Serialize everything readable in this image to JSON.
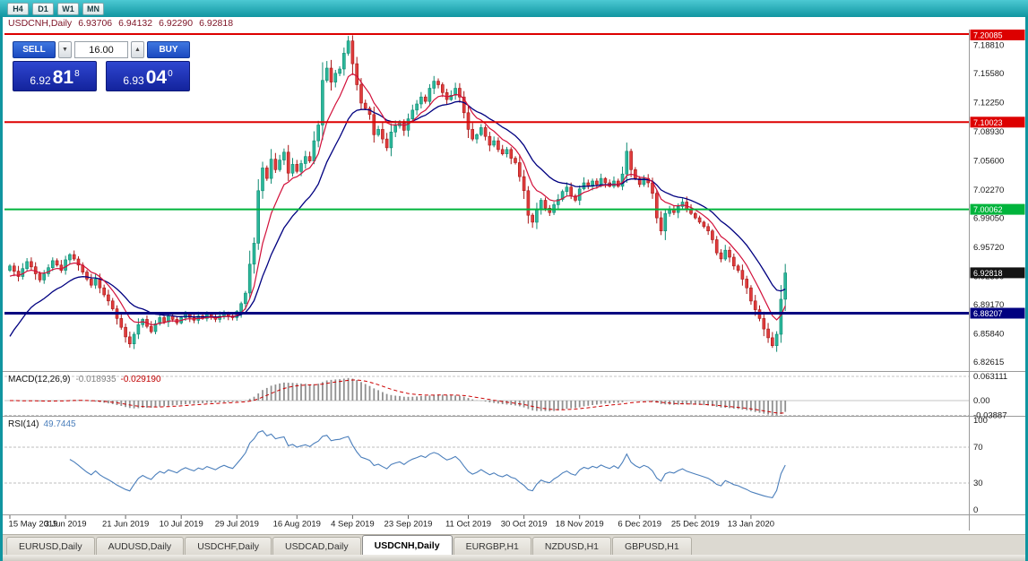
{
  "toolbar": {
    "timeframes": [
      "H4",
      "D1",
      "W1",
      "MN"
    ]
  },
  "title": {
    "symbol": "USDCNH,Daily",
    "open": "6.93706",
    "high": "6.94132",
    "low": "6.92290",
    "close": "6.92818"
  },
  "trade": {
    "sell_label": "SELL",
    "buy_label": "BUY",
    "volume": "16.00",
    "step_down": "▼",
    "step_up": "▲",
    "sell": {
      "big": "6.92",
      "pips": "81",
      "sup": "8"
    },
    "buy": {
      "big": "6.93",
      "pips": "04",
      "sup": "0"
    }
  },
  "chart": {
    "type": "candlestick",
    "symbol": "USDCNH",
    "period": "Daily",
    "hlines": [
      {
        "value": 7.20085,
        "label": "7.20085",
        "color": "#dd0000",
        "width": 2
      },
      {
        "value": 7.10023,
        "label": "7.10023",
        "color": "#dd0000",
        "width": 2
      },
      {
        "value": 7.00062,
        "label": "7.00062",
        "color": "#00b43c",
        "width": 2
      },
      {
        "value": 6.88207,
        "label": "6.88207",
        "color": "#000080",
        "width": 3
      }
    ],
    "current_price": {
      "label": "6.92818",
      "value": 6.92818,
      "box_color": "#141414"
    },
    "y_axis": [
      {
        "label": "7.18810",
        "value": 7.1881
      },
      {
        "label": "7.15580",
        "value": 7.1558
      },
      {
        "label": "7.12250",
        "value": 7.1225
      },
      {
        "label": "7.08930",
        "value": 7.0893
      },
      {
        "label": "7.05600",
        "value": 7.056
      },
      {
        "label": "7.02270",
        "value": 7.0227
      },
      {
        "label": "6.99050",
        "value": 6.9905
      },
      {
        "label": "6.95720",
        "value": 6.9572
      },
      {
        "label": "6.92390",
        "value": 6.9239
      },
      {
        "label": "6.89170",
        "value": 6.8917
      },
      {
        "label": "6.85840",
        "value": 6.8584
      },
      {
        "label": "6.82615",
        "value": 6.82615
      }
    ],
    "date_ticks": [
      {
        "i": 0,
        "label": "15 May 2019"
      },
      {
        "i": 13,
        "label": "3 Jun 2019"
      },
      {
        "i": 27,
        "label": "21 Jun 2019"
      },
      {
        "i": 40,
        "label": "10 Jul 2019"
      },
      {
        "i": 53,
        "label": "29 Jul 2019"
      },
      {
        "i": 67,
        "label": "16 Aug 2019"
      },
      {
        "i": 80,
        "label": "4 Sep 2019"
      },
      {
        "i": 93,
        "label": "23 Sep 2019"
      },
      {
        "i": 107,
        "label": "11 Oct 2019"
      },
      {
        "i": 120,
        "label": "30 Oct 2019"
      },
      {
        "i": 133,
        "label": "18 Nov 2019"
      },
      {
        "i": 147,
        "label": "6 Dec 2019"
      },
      {
        "i": 160,
        "label": "25 Dec 2019"
      },
      {
        "i": 173,
        "label": "13 Jan 2020"
      }
    ],
    "closes": [
      6.936,
      6.93,
      6.924,
      6.933,
      6.941,
      6.935,
      6.927,
      6.92,
      6.927,
      6.934,
      6.942,
      6.937,
      6.931,
      6.943,
      6.949,
      6.944,
      6.937,
      6.929,
      6.921,
      6.914,
      6.921,
      6.911,
      6.903,
      6.896,
      6.887,
      6.876,
      6.866,
      6.855,
      6.847,
      6.858,
      6.869,
      6.875,
      6.867,
      6.861,
      6.87,
      6.877,
      6.872,
      6.879,
      6.875,
      6.871,
      6.877,
      6.881,
      6.877,
      6.874,
      6.879,
      6.876,
      6.881,
      6.878,
      6.875,
      6.879,
      6.882,
      6.879,
      6.877,
      6.884,
      6.893,
      6.905,
      6.938,
      6.962,
      7.022,
      7.048,
      7.036,
      7.058,
      7.046,
      7.057,
      7.066,
      7.042,
      7.052,
      7.044,
      7.053,
      7.061,
      7.056,
      7.079,
      7.097,
      7.148,
      7.162,
      7.146,
      7.156,
      7.161,
      7.179,
      7.193,
      7.167,
      7.143,
      7.122,
      7.116,
      7.109,
      7.086,
      7.092,
      7.081,
      7.071,
      7.089,
      7.096,
      7.101,
      7.091,
      7.104,
      7.114,
      7.121,
      7.129,
      7.124,
      7.139,
      7.147,
      7.143,
      7.134,
      7.126,
      7.131,
      7.139,
      7.129,
      7.111,
      7.092,
      7.081,
      7.086,
      7.094,
      7.084,
      7.074,
      7.079,
      7.069,
      7.064,
      7.069,
      7.059,
      7.054,
      7.038,
      7.022,
      6.994,
      6.986,
      7.001,
      7.011,
      7.002,
      6.997,
      7.006,
      7.012,
      7.021,
      7.026,
      7.016,
      7.011,
      7.024,
      7.031,
      7.027,
      7.033,
      7.029,
      7.036,
      7.031,
      7.027,
      7.033,
      7.027,
      7.041,
      7.067,
      7.046,
      7.036,
      7.029,
      7.036,
      7.031,
      7.019,
      6.991,
      6.976,
      6.996,
      7.001,
      6.997,
      7.004,
      7.009,
      7.001,
      6.996,
      6.991,
      6.986,
      6.981,
      6.976,
      6.966,
      6.951,
      6.944,
      6.954,
      6.946,
      6.936,
      6.931,
      6.921,
      6.911,
      6.896,
      6.886,
      6.876,
      6.864,
      6.854,
      6.845,
      6.858,
      6.898,
      6.928
    ],
    "colors": {
      "up": "#2bb79a",
      "up_stroke": "#0e8a72",
      "down": "#e03c3c",
      "down_stroke": "#a81616",
      "ma_fast": "#d2103a",
      "ma_slow": "#000080",
      "rsi": "#4a7ebb",
      "macd_hist": "#909090",
      "macd_signal": "#cc0000"
    }
  },
  "macd": {
    "label": "MACD(12,26,9)",
    "main_value": "-0.018935",
    "signal_value": "-0.029190",
    "axis": [
      {
        "label": "0.063111",
        "value": 0.063111
      },
      {
        "label": "0.00",
        "value": 0
      },
      {
        "label": "-0.03887",
        "value": -0.03887
      }
    ]
  },
  "rsi": {
    "label": "RSI(14)",
    "value": "49.7445",
    "axis": [
      {
        "label": "100",
        "value": 100
      },
      {
        "label": "70",
        "value": 70
      },
      {
        "label": "30",
        "value": 30
      },
      {
        "label": "0",
        "value": 0
      }
    ],
    "levels": [
      70,
      30
    ]
  },
  "tabs": [
    {
      "label": "EURUSD,Daily",
      "active": false
    },
    {
      "label": "AUDUSD,Daily",
      "active": false
    },
    {
      "label": "USDCHF,Daily",
      "active": false
    },
    {
      "label": "USDCAD,Daily",
      "active": false
    },
    {
      "label": "USDCNH,Daily",
      "active": true
    },
    {
      "label": "EURGBP,H1",
      "active": false
    },
    {
      "label": "NZDUSD,H1",
      "active": false
    },
    {
      "label": "GBPUSD,H1",
      "active": false
    }
  ]
}
